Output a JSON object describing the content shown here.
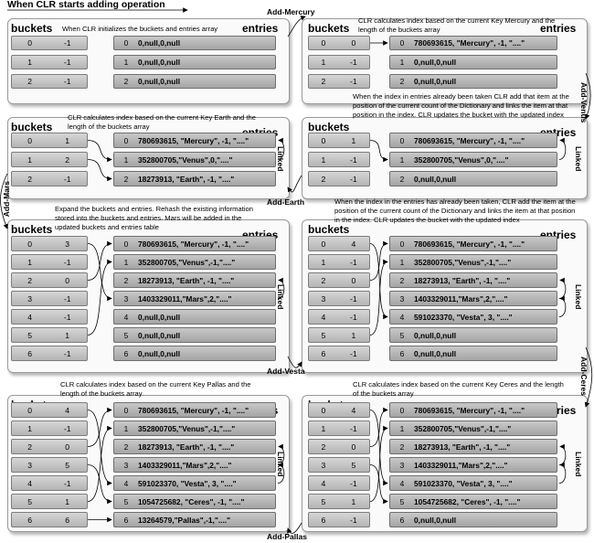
{
  "title": "When CLR starts adding operation",
  "labels": {
    "buckets": "buckets",
    "entries": "entries",
    "linked": "Linked"
  },
  "operations": {
    "add_mercury": "Add-Mercury",
    "add_venus": "Add-Venus",
    "add_earth": "Add-Earth",
    "add_mars": "Add-Mars",
    "add_vesta": "Add-Vesta",
    "add_ceres": "Add-Ceres",
    "add_pallas": "Add-Pallas"
  },
  "panels": [
    {
      "id": "p1",
      "note": "When CLR initializes the buckets and entries array",
      "buckets": [
        [
          "0",
          "-1"
        ],
        [
          "1",
          "-1"
        ],
        [
          "2",
          "-1"
        ]
      ],
      "entries": [
        [
          "0",
          "0,null,0,null"
        ],
        [
          "1",
          "0,null,0,null"
        ],
        [
          "2",
          "0,null,0,null"
        ]
      ],
      "linked": false
    },
    {
      "id": "p2",
      "note": "CLR calculates index based on the current Key Mercury and the length of the buckets array",
      "buckets": [
        [
          "0",
          "0"
        ],
        [
          "1",
          "-1"
        ],
        [
          "2",
          "-1"
        ]
      ],
      "entries": [
        [
          "0",
          "780693615, \"Mercury\", -1, \"....\""
        ],
        [
          "1",
          "0,null,0,null"
        ],
        [
          "2",
          "0,null,0,null"
        ]
      ],
      "linked": false
    },
    {
      "id": "p3",
      "note": "CLR calculates index based on the current Key Earth and the length of the buckets array",
      "buckets": [
        [
          "0",
          "1"
        ],
        [
          "1",
          "2"
        ],
        [
          "2",
          "-1"
        ]
      ],
      "entries": [
        [
          "0",
          "780693615, \"Mercury\", -1, \"....\""
        ],
        [
          "1",
          "352800705,\"Venus\",0,\"....\""
        ],
        [
          "2",
          "18273913, \"Earth\", -1, \"....\""
        ]
      ],
      "linked": true
    },
    {
      "id": "p4",
      "note": "When the index in entries already been taken CLR add that item at the position of the current count of the Dictionary and links the item at that position in the index. CLR updates the bucket with the updated index",
      "buckets": [
        [
          "0",
          "1"
        ],
        [
          "1",
          "-1"
        ],
        [
          "2",
          "-1"
        ]
      ],
      "entries": [
        [
          "0",
          "780693615, \"Mercury\", -1, \"....\""
        ],
        [
          "1",
          "352800705,\"Venus\",0,\"....\""
        ],
        [
          "2",
          "0,null,0,null"
        ]
      ],
      "linked": true
    },
    {
      "id": "p5",
      "note": "Expand the buckets and entries. Rehash the existing information stored into the buckets and entries. Mars will be added in the updated buckets and entries table",
      "buckets": [
        [
          "0",
          "3"
        ],
        [
          "1",
          "-1"
        ],
        [
          "2",
          "0"
        ],
        [
          "3",
          "-1"
        ],
        [
          "4",
          "-1"
        ],
        [
          "5",
          "1"
        ],
        [
          "6",
          "-1"
        ]
      ],
      "entries": [
        [
          "0",
          "780693615, \"Mercury\", -1, \"....\""
        ],
        [
          "1",
          "352800705,\"Venus\",-1,\"....\""
        ],
        [
          "2",
          "18273913, \"Earth\", -1, \"....\""
        ],
        [
          "3",
          "1403329011,\"Mars\",2,\"....\""
        ],
        [
          "4",
          "0,null,0,null"
        ],
        [
          "5",
          "0,null,0,null"
        ],
        [
          "6",
          "0,null,0,null"
        ]
      ],
      "linked": true
    },
    {
      "id": "p6",
      "note": "When the index in the entries has already been taken, CLR add the item at the position of the current count of the Dictionary and links the item at that position in the index. CLR updates the bucket with the updated index",
      "buckets": [
        [
          "0",
          "4"
        ],
        [
          "1",
          "-1"
        ],
        [
          "2",
          "0"
        ],
        [
          "3",
          "-1"
        ],
        [
          "4",
          "-1"
        ],
        [
          "5",
          "1"
        ],
        [
          "6",
          "-1"
        ]
      ],
      "entries": [
        [
          "0",
          "780693615, \"Mercury\", -1, \"....\""
        ],
        [
          "1",
          "352800705,\"Venus\",-1,\"....\""
        ],
        [
          "2",
          "18273913, \"Earth\", -1, \"....\""
        ],
        [
          "3",
          "1403329011,\"Mars\",2,\"....\""
        ],
        [
          "4",
          "591023370, \"Vesta\", 3, \"....\""
        ],
        [
          "5",
          "0,null,0,null"
        ],
        [
          "6",
          "0,null,0,null"
        ]
      ],
      "linked": true
    },
    {
      "id": "p7",
      "note": "CLR calculates index based on the current Key Pallas and the length of the buckets array",
      "buckets": [
        [
          "0",
          "4"
        ],
        [
          "1",
          "-1"
        ],
        [
          "2",
          "0"
        ],
        [
          "3",
          "5"
        ],
        [
          "4",
          "-1"
        ],
        [
          "5",
          "1"
        ],
        [
          "6",
          "6"
        ]
      ],
      "entries": [
        [
          "0",
          "780693615, \"Mercury\", -1, \"....\""
        ],
        [
          "1",
          "352800705,\"Venus\",-1,\"....\""
        ],
        [
          "2",
          "18273913, \"Earth\", -1, \"....\""
        ],
        [
          "3",
          "1403329011,\"Mars\",2,\"....\""
        ],
        [
          "4",
          "591023370, \"Vesta\", 3, \"....\""
        ],
        [
          "5",
          "1054725682, \"Ceres\", -1, \"....\""
        ],
        [
          "6",
          "13264579,\"Pallas\",-1,\"....\""
        ]
      ],
      "linked": true
    },
    {
      "id": "p8",
      "note": "CLR calculates index based on the current Key Ceres and the length of the buckets array",
      "buckets": [
        [
          "0",
          "4"
        ],
        [
          "1",
          "-1"
        ],
        [
          "2",
          "0"
        ],
        [
          "3",
          "5"
        ],
        [
          "4",
          "-1"
        ],
        [
          "5",
          "1"
        ],
        [
          "6",
          "-1"
        ]
      ],
      "entries": [
        [
          "0",
          "780693615, \"Mercury\", -1, \"....\""
        ],
        [
          "1",
          "352800705,\"Venus\",-1,\"....\""
        ],
        [
          "2",
          "18273913, \"Earth\", -1, \"....\""
        ],
        [
          "3",
          "1403329011,\"Mars\",2,\"....\""
        ],
        [
          "4",
          "591023370, \"Vesta\", 3, \"....\""
        ],
        [
          "5",
          "1054725682, \"Ceres\", -1, \"....\""
        ],
        [
          "6",
          "0,null,0,null"
        ]
      ],
      "linked": true
    }
  ]
}
